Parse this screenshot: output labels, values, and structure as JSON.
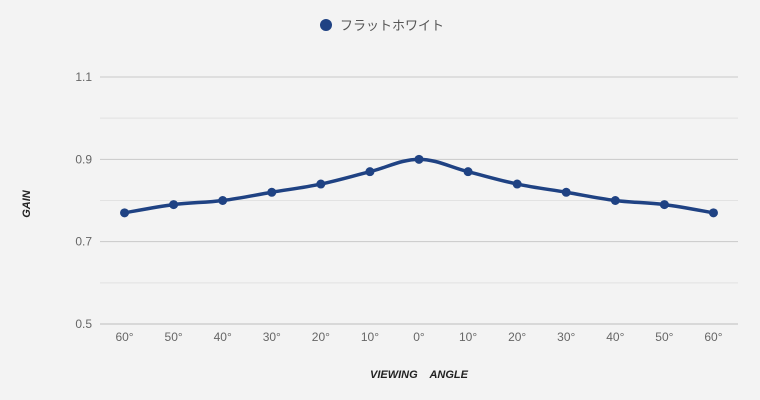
{
  "chart_data": {
    "type": "line",
    "title": "",
    "xlabel": "VIEWING    ANGLE",
    "ylabel": "GAIN",
    "categories": [
      "60°",
      "50°",
      "40°",
      "30°",
      "20°",
      "10°",
      "0°",
      "10°",
      "20°",
      "30°",
      "40°",
      "50°",
      "60°"
    ],
    "series": [
      {
        "name": "フラットホワイト",
        "color": "#1f4283",
        "values": [
          0.77,
          0.79,
          0.8,
          0.82,
          0.84,
          0.87,
          0.9,
          0.87,
          0.84,
          0.82,
          0.8,
          0.79,
          0.77
        ]
      }
    ],
    "ylim": [
      0.5,
      1.1
    ],
    "yticks": [
      0.5,
      0.7,
      0.9,
      1.1
    ],
    "ytick_labels": [
      "0.5",
      "0.7",
      "0.9",
      "1.1"
    ],
    "minor_gridlines": [
      0.6,
      0.8,
      1.0
    ],
    "grid": true,
    "legend_position": "top-center"
  }
}
